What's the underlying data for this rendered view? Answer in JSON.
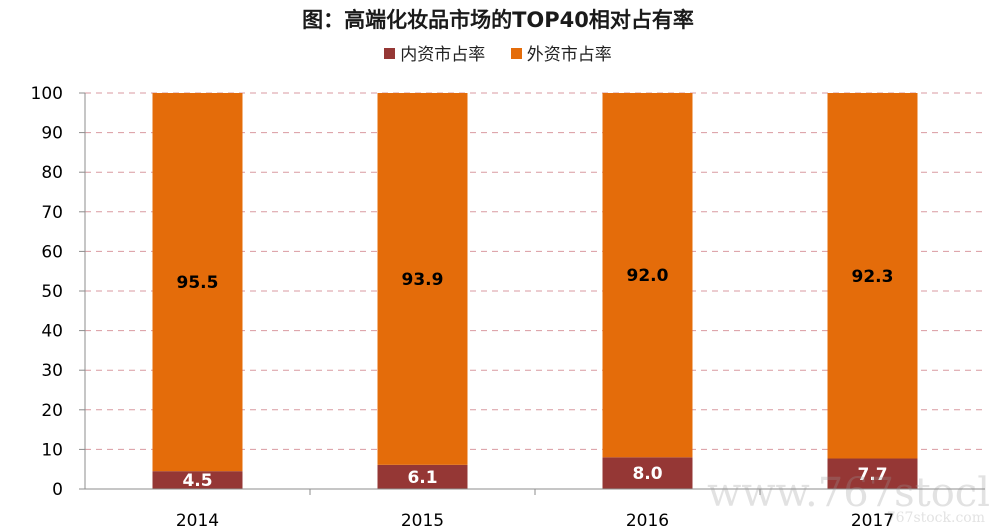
{
  "chart_data": {
    "type": "bar",
    "stacked": true,
    "title": "图：高端化妆品市场的TOP40相对占有率",
    "categories": [
      "2014",
      "2015",
      "2016",
      "2017"
    ],
    "series": [
      {
        "name": "内资市占率",
        "color": "#953735",
        "values": [
          4.5,
          6.1,
          8.0,
          7.7
        ]
      },
      {
        "name": "外资市占率",
        "color": "#E46C0A",
        "values": [
          95.5,
          93.9,
          92.0,
          92.3
        ]
      }
    ],
    "value_labels": [
      [
        "4.5",
        "6.1",
        "8.0",
        "7.7"
      ],
      [
        "95.5",
        "93.9",
        "92.0",
        "92.3"
      ]
    ],
    "ylim": [
      0,
      100
    ],
    "yticks": [
      0,
      10,
      20,
      30,
      40,
      50,
      60,
      70,
      80,
      90,
      100
    ],
    "grid": true,
    "legend_position": "top-center",
    "label_colors": [
      "#ffffff",
      "#000000"
    ]
  },
  "watermark": {
    "main": "www.767stocl",
    "sub": "767stock.com"
  }
}
